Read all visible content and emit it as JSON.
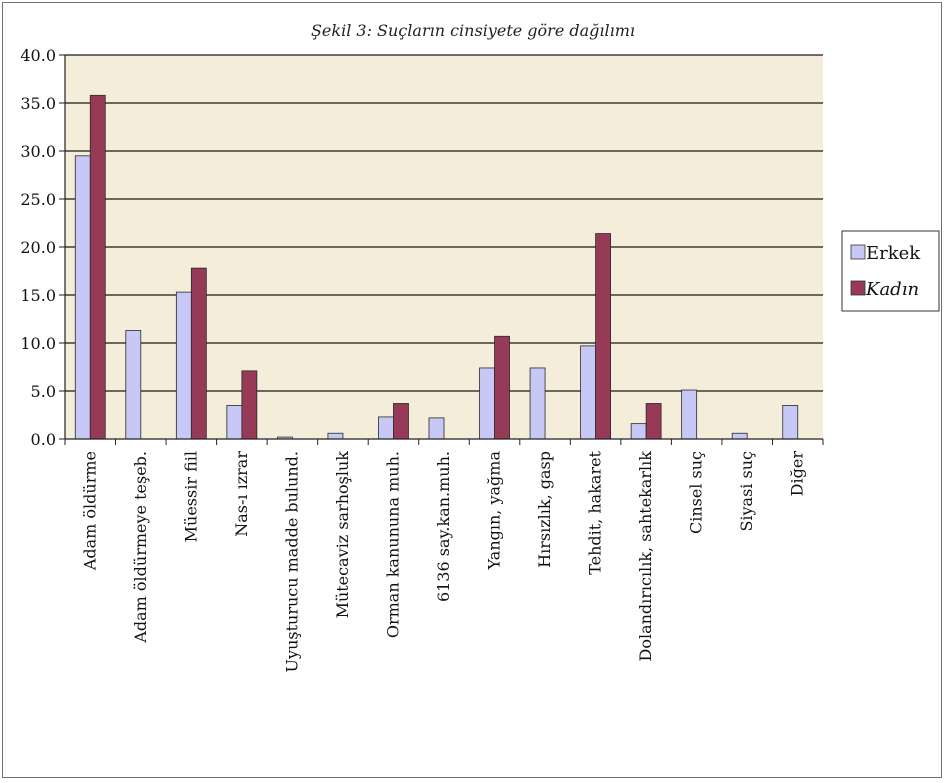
{
  "chart_data": {
    "type": "bar",
    "title": "Şekil 3: Suçların cinsiyete göre dağılımı",
    "xlabel": "",
    "ylabel": "",
    "ylim": [
      0,
      40
    ],
    "yticks": [
      "0.0",
      "5.0",
      "10.0",
      "15.0",
      "20.0",
      "25.0",
      "30.0",
      "35.0",
      "40.0"
    ],
    "grid": true,
    "legend_position": "right",
    "categories": [
      "Adam öldürme",
      "Adam öldürmeye teşeb.",
      "Müessir fiil",
      "Nas-ı ızrar",
      "Uyuşturucu madde bulund.",
      "Mütecaviz sarhoşluk",
      "Orman kanununa muh.",
      "6136 say.kan.muh.",
      "Yangın, yağma",
      "Hırsızlık, gasp",
      "Tehdit, hakaret",
      "Dolandırıcılık, sahtekarlık",
      "Cinsel suç",
      "Siyasi suç",
      "Diğer"
    ],
    "series": [
      {
        "name": "Erkek",
        "color": "#c8c8f6",
        "values": [
          29.5,
          11.3,
          15.3,
          3.5,
          0.2,
          0.6,
          2.3,
          2.2,
          7.4,
          7.4,
          9.7,
          1.6,
          5.1,
          0.6,
          3.5
        ]
      },
      {
        "name": "Kadın",
        "color": "#963a58",
        "values": [
          35.8,
          0,
          17.8,
          7.1,
          0,
          0,
          3.7,
          0,
          10.7,
          0,
          21.4,
          3.7,
          0,
          0,
          0
        ]
      }
    ]
  },
  "colors": {
    "plot_background": "#f3edd9",
    "gridline": "#1a1a1a",
    "bar_outline": "#2a2a2a"
  }
}
